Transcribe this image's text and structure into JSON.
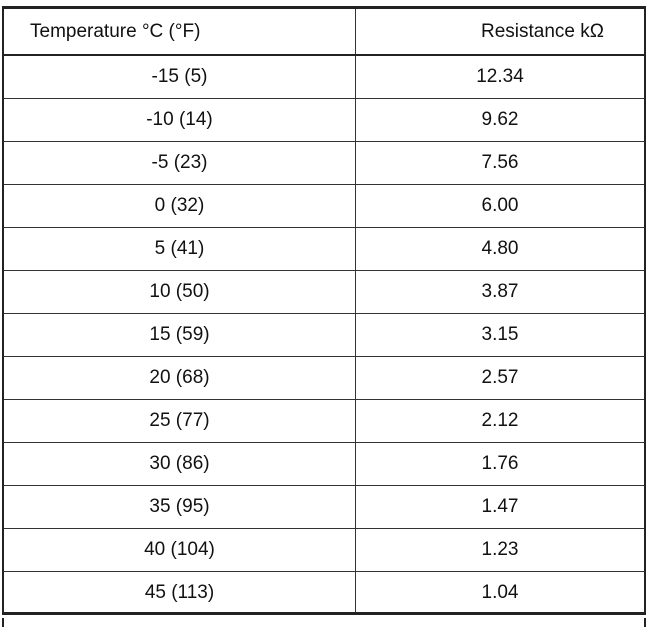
{
  "table": {
    "header": [
      "Temperature °C (°F)",
      "Resistance kΩ"
    ],
    "rows": [
      [
        "-15 (5)",
        "12.34"
      ],
      [
        "-10 (14)",
        "9.62"
      ],
      [
        "-5 (23)",
        "7.56"
      ],
      [
        "0 (32)",
        "6.00"
      ],
      [
        "5 (41)",
        "4.80"
      ],
      [
        "10 (50)",
        "3.87"
      ],
      [
        "15 (59)",
        "3.15"
      ],
      [
        "20 (68)",
        "2.57"
      ],
      [
        "25 (77)",
        "2.12"
      ],
      [
        "30 (86)",
        "1.76"
      ],
      [
        "35 (95)",
        "1.47"
      ],
      [
        "40 (104)",
        "1.23"
      ],
      [
        "45 (113)",
        "1.04"
      ]
    ]
  }
}
